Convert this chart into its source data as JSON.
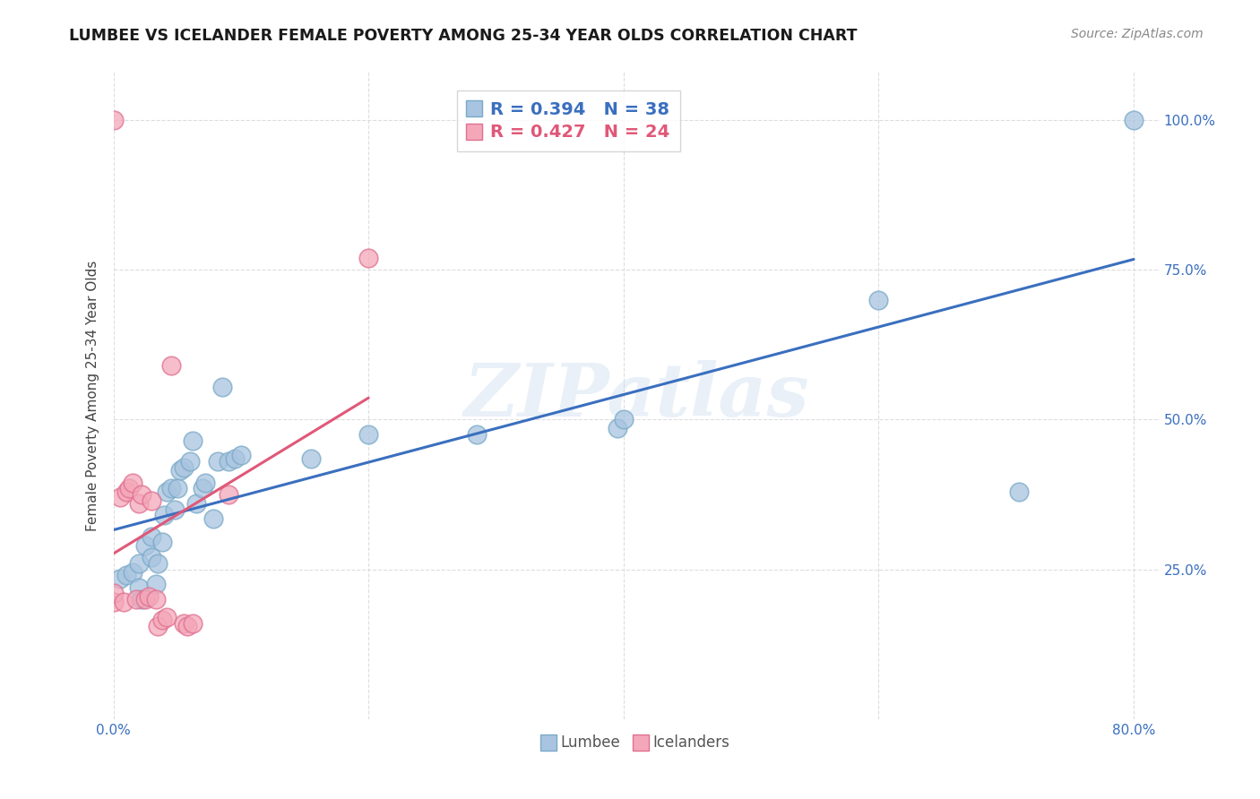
{
  "title": "LUMBEE VS ICELANDER FEMALE POVERTY AMONG 25-34 YEAR OLDS CORRELATION CHART",
  "source": "Source: ZipAtlas.com",
  "ylabel": "Female Poverty Among 25-34 Year Olds",
  "xlim": [
    0.0,
    0.82
  ],
  "ylim": [
    0.0,
    1.08
  ],
  "watermark": "ZIPatlas",
  "lumbee_color": "#a8c4e0",
  "lumbee_edge_color": "#7aaac8",
  "icelander_color": "#f4a7b9",
  "icelander_edge_color": "#e07090",
  "lumbee_line_color": "#3a6fbf",
  "icelander_line_color": "#e05878",
  "lumbee_x": [
    0.005,
    0.01,
    0.015,
    0.02,
    0.02,
    0.022,
    0.025,
    0.03,
    0.03,
    0.033,
    0.035,
    0.038,
    0.04,
    0.042,
    0.045,
    0.048,
    0.05,
    0.052,
    0.055,
    0.06,
    0.062,
    0.065,
    0.07,
    0.072,
    0.078,
    0.082,
    0.085,
    0.09,
    0.095,
    0.1,
    0.155,
    0.2,
    0.285,
    0.395,
    0.4,
    0.6,
    0.71,
    0.8
  ],
  "lumbee_y": [
    0.235,
    0.24,
    0.245,
    0.22,
    0.26,
    0.2,
    0.29,
    0.27,
    0.305,
    0.225,
    0.26,
    0.295,
    0.34,
    0.38,
    0.385,
    0.35,
    0.385,
    0.415,
    0.42,
    0.43,
    0.465,
    0.36,
    0.385,
    0.395,
    0.335,
    0.43,
    0.555,
    0.43,
    0.435,
    0.44,
    0.435,
    0.475,
    0.475,
    0.485,
    0.5,
    0.7,
    0.38,
    1.0
  ],
  "icelander_x": [
    0.0,
    0.0,
    0.0,
    0.005,
    0.008,
    0.01,
    0.012,
    0.015,
    0.018,
    0.02,
    0.022,
    0.025,
    0.028,
    0.03,
    0.033,
    0.035,
    0.038,
    0.042,
    0.045,
    0.055,
    0.058,
    0.062,
    0.09,
    0.2
  ],
  "icelander_y": [
    0.195,
    0.21,
    1.0,
    0.37,
    0.195,
    0.38,
    0.385,
    0.395,
    0.2,
    0.36,
    0.375,
    0.2,
    0.205,
    0.365,
    0.2,
    0.155,
    0.165,
    0.17,
    0.59,
    0.16,
    0.155,
    0.16,
    0.375,
    0.77
  ],
  "yticks": [
    0.25,
    0.5,
    0.75,
    1.0
  ],
  "ytick_labels": [
    "25.0%",
    "50.0%",
    "75.0%",
    "100.0%"
  ],
  "xtick_left_label": "0.0%",
  "xtick_right_label": "80.0%",
  "legend_lumbee_r": "R = 0.394",
  "legend_lumbee_n": "N = 38",
  "legend_ice_r": "R = 0.427",
  "legend_ice_n": "N = 24",
  "legend_bottom_lumbee": "Lumbee",
  "legend_bottom_ice": "Icelanders",
  "gridline_color": "#dddddd",
  "title_fontsize": 12.5,
  "source_fontsize": 10,
  "tick_fontsize": 11,
  "ylabel_fontsize": 11
}
